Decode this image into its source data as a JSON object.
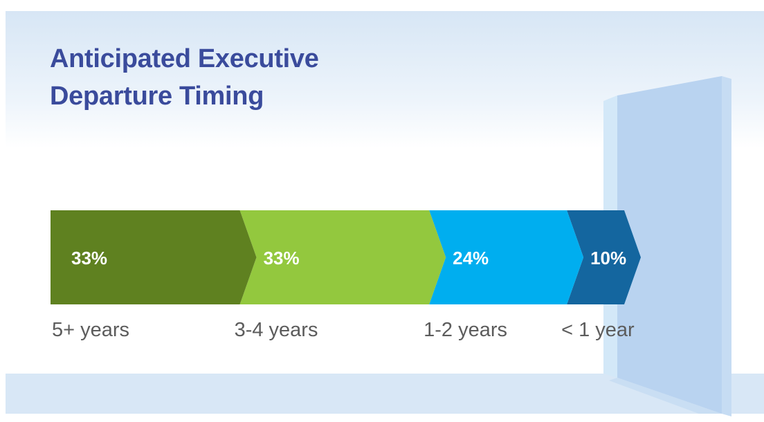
{
  "title": {
    "line1": "Anticipated Executive",
    "line2": "Departure Timing"
  },
  "chart_data": {
    "type": "bar",
    "stacked": true,
    "orientation": "horizontal",
    "title": "Anticipated Executive Departure Timing",
    "unit": "%",
    "total": 100,
    "series": [
      {
        "category": "5+ years",
        "value": 33,
        "label": "33%",
        "color": "#5f8120"
      },
      {
        "category": "3-4 years",
        "value": 33,
        "label": "33%",
        "color": "#93c83e"
      },
      {
        "category": "1-2 years",
        "value": 24,
        "label": "24%",
        "color": "#00aeef"
      },
      {
        "category": "< 1 year",
        "value": 10,
        "label": "10%",
        "color": "#14669f"
      }
    ],
    "legend": false,
    "grid": false
  },
  "decor": {
    "door_color": "#b9d3f0",
    "door_frame_color": "#d3e8f8"
  }
}
